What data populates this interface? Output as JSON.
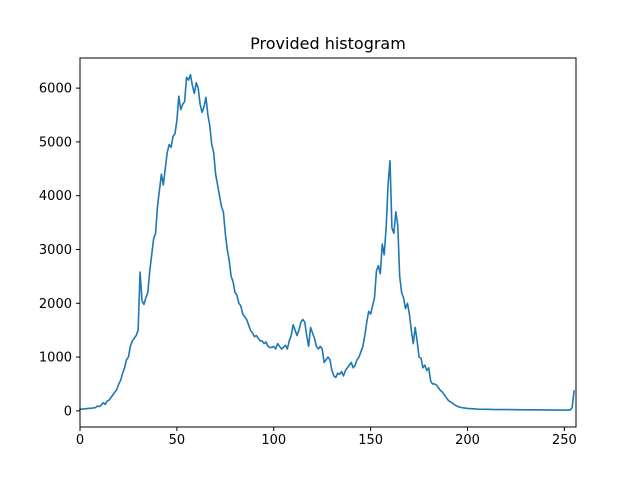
{
  "chart_data": {
    "type": "line",
    "title": "Provided histogram",
    "xlabel": "",
    "ylabel": "",
    "xlim": [
      0,
      256
    ],
    "ylim": [
      -300,
      6560
    ],
    "xticks": [
      0,
      50,
      100,
      150,
      200,
      250
    ],
    "yticks": [
      0,
      1000,
      2000,
      3000,
      4000,
      5000,
      6000
    ],
    "grid": false,
    "legend": "none",
    "series": [
      {
        "color": "#1f77b4",
        "points": [
          [
            0,
            30
          ],
          [
            2,
            35
          ],
          [
            4,
            45
          ],
          [
            6,
            50
          ],
          [
            8,
            60
          ],
          [
            9,
            90
          ],
          [
            10,
            80
          ],
          [
            11,
            110
          ],
          [
            12,
            150
          ],
          [
            13,
            120
          ],
          [
            14,
            180
          ],
          [
            15,
            200
          ],
          [
            16,
            250
          ],
          [
            17,
            300
          ],
          [
            18,
            350
          ],
          [
            19,
            400
          ],
          [
            20,
            500
          ],
          [
            21,
            570
          ],
          [
            22,
            700
          ],
          [
            23,
            800
          ],
          [
            24,
            950
          ],
          [
            25,
            1000
          ],
          [
            26,
            1200
          ],
          [
            27,
            1300
          ],
          [
            28,
            1350
          ],
          [
            29,
            1400
          ],
          [
            30,
            1500
          ],
          [
            31,
            2580
          ],
          [
            32,
            2050
          ],
          [
            33,
            1980
          ],
          [
            34,
            2100
          ],
          [
            35,
            2200
          ],
          [
            36,
            2600
          ],
          [
            37,
            2900
          ],
          [
            38,
            3200
          ],
          [
            39,
            3300
          ],
          [
            40,
            3800
          ],
          [
            41,
            4100
          ],
          [
            42,
            4400
          ],
          [
            43,
            4200
          ],
          [
            44,
            4500
          ],
          [
            45,
            4800
          ],
          [
            46,
            4950
          ],
          [
            47,
            4900
          ],
          [
            48,
            5100
          ],
          [
            49,
            5150
          ],
          [
            50,
            5400
          ],
          [
            51,
            5850
          ],
          [
            52,
            5600
          ],
          [
            53,
            5700
          ],
          [
            54,
            5750
          ],
          [
            55,
            6200
          ],
          [
            56,
            6150
          ],
          [
            57,
            6250
          ],
          [
            58,
            6050
          ],
          [
            59,
            5900
          ],
          [
            60,
            6100
          ],
          [
            61,
            6000
          ],
          [
            62,
            5700
          ],
          [
            63,
            5550
          ],
          [
            64,
            5650
          ],
          [
            65,
            5830
          ],
          [
            66,
            5500
          ],
          [
            67,
            5300
          ],
          [
            68,
            4950
          ],
          [
            69,
            4800
          ],
          [
            70,
            4400
          ],
          [
            71,
            4200
          ],
          [
            72,
            4000
          ],
          [
            73,
            3800
          ],
          [
            74,
            3700
          ],
          [
            75,
            3300
          ],
          [
            76,
            3000
          ],
          [
            77,
            2800
          ],
          [
            78,
            2500
          ],
          [
            79,
            2400
          ],
          [
            80,
            2200
          ],
          [
            81,
            2150
          ],
          [
            82,
            2000
          ],
          [
            83,
            1950
          ],
          [
            84,
            1800
          ],
          [
            85,
            1750
          ],
          [
            86,
            1700
          ],
          [
            87,
            1600
          ],
          [
            88,
            1500
          ],
          [
            89,
            1450
          ],
          [
            90,
            1380
          ],
          [
            91,
            1400
          ],
          [
            92,
            1350
          ],
          [
            93,
            1300
          ],
          [
            94,
            1300
          ],
          [
            95,
            1250
          ],
          [
            96,
            1280
          ],
          [
            97,
            1200
          ],
          [
            98,
            1180
          ],
          [
            99,
            1180
          ],
          [
            100,
            1200
          ],
          [
            101,
            1150
          ],
          [
            102,
            1250
          ],
          [
            103,
            1200
          ],
          [
            104,
            1150
          ],
          [
            105,
            1180
          ],
          [
            106,
            1220
          ],
          [
            107,
            1150
          ],
          [
            108,
            1300
          ],
          [
            109,
            1400
          ],
          [
            110,
            1600
          ],
          [
            111,
            1500
          ],
          [
            112,
            1400
          ],
          [
            113,
            1500
          ],
          [
            114,
            1650
          ],
          [
            115,
            1700
          ],
          [
            116,
            1650
          ],
          [
            117,
            1400
          ],
          [
            118,
            1200
          ],
          [
            119,
            1550
          ],
          [
            120,
            1450
          ],
          [
            121,
            1350
          ],
          [
            122,
            1200
          ],
          [
            123,
            1150
          ],
          [
            124,
            1200
          ],
          [
            125,
            1150
          ],
          [
            126,
            900
          ],
          [
            127,
            950
          ],
          [
            128,
            1000
          ],
          [
            129,
            950
          ],
          [
            130,
            750
          ],
          [
            131,
            650
          ],
          [
            132,
            620
          ],
          [
            133,
            700
          ],
          [
            134,
            680
          ],
          [
            135,
            730
          ],
          [
            136,
            650
          ],
          [
            137,
            750
          ],
          [
            138,
            800
          ],
          [
            139,
            850
          ],
          [
            140,
            900
          ],
          [
            141,
            800
          ],
          [
            142,
            850
          ],
          [
            143,
            950
          ],
          [
            144,
            1000
          ],
          [
            145,
            1100
          ],
          [
            146,
            1200
          ],
          [
            147,
            1400
          ],
          [
            148,
            1650
          ],
          [
            149,
            1850
          ],
          [
            150,
            1800
          ],
          [
            151,
            1950
          ],
          [
            152,
            2100
          ],
          [
            153,
            2600
          ],
          [
            154,
            2700
          ],
          [
            155,
            2550
          ],
          [
            156,
            3100
          ],
          [
            157,
            2900
          ],
          [
            158,
            3400
          ],
          [
            159,
            4200
          ],
          [
            160,
            4650
          ],
          [
            161,
            3400
          ],
          [
            162,
            3300
          ],
          [
            163,
            3700
          ],
          [
            164,
            3450
          ],
          [
            165,
            2500
          ],
          [
            166,
            2200
          ],
          [
            167,
            2100
          ],
          [
            168,
            1900
          ],
          [
            169,
            2000
          ],
          [
            170,
            1800
          ],
          [
            171,
            1500
          ],
          [
            172,
            1250
          ],
          [
            173,
            1550
          ],
          [
            174,
            1300
          ],
          [
            175,
            1000
          ],
          [
            176,
            980
          ],
          [
            177,
            800
          ],
          [
            178,
            850
          ],
          [
            179,
            750
          ],
          [
            180,
            800
          ],
          [
            181,
            550
          ],
          [
            182,
            500
          ],
          [
            183,
            500
          ],
          [
            184,
            480
          ],
          [
            185,
            430
          ],
          [
            186,
            380
          ],
          [
            187,
            350
          ],
          [
            188,
            300
          ],
          [
            189,
            250
          ],
          [
            190,
            200
          ],
          [
            191,
            170
          ],
          [
            192,
            150
          ],
          [
            193,
            120
          ],
          [
            194,
            100
          ],
          [
            195,
            80
          ],
          [
            196,
            70
          ],
          [
            197,
            60
          ],
          [
            198,
            55
          ],
          [
            199,
            50
          ],
          [
            200,
            45
          ],
          [
            202,
            40
          ],
          [
            204,
            35
          ],
          [
            206,
            30
          ],
          [
            208,
            30
          ],
          [
            210,
            28
          ],
          [
            215,
            25
          ],
          [
            220,
            25
          ],
          [
            225,
            22
          ],
          [
            230,
            20
          ],
          [
            235,
            20
          ],
          [
            240,
            18
          ],
          [
            245,
            15
          ],
          [
            250,
            15
          ],
          [
            253,
            15
          ],
          [
            254,
            60
          ],
          [
            255,
            370
          ]
        ]
      }
    ]
  }
}
